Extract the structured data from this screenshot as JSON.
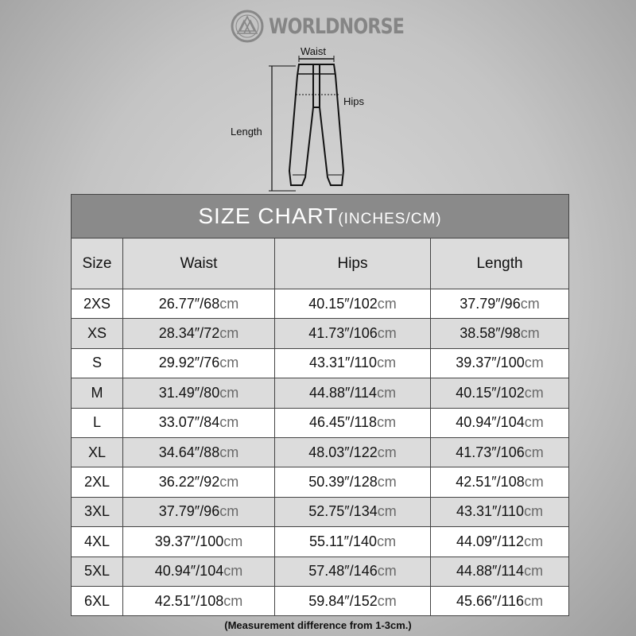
{
  "brand": {
    "name": "WORLDNORSE"
  },
  "illustration": {
    "waist_label": "Waist",
    "hips_label": "Hips",
    "length_label": "Length"
  },
  "table": {
    "title": "SIZE CHART",
    "title_unit": "(INCHES/CM)",
    "headers": [
      "Size",
      "Waist",
      "Hips",
      "Length"
    ],
    "rows": [
      {
        "size": "2XS",
        "cells": [
          {
            "num": "26.77″/68",
            "unit": "cm"
          },
          {
            "num": "40.15″/102",
            "unit": "cm"
          },
          {
            "num": "37.79″/96",
            "unit": "cm"
          }
        ]
      },
      {
        "size": "XS",
        "cells": [
          {
            "num": "28.34″/72",
            "unit": "cm"
          },
          {
            "num": "41.73″/106",
            "unit": "cm"
          },
          {
            "num": "38.58″/98",
            "unit": "cm"
          }
        ]
      },
      {
        "size": "S",
        "cells": [
          {
            "num": "29.92″/76",
            "unit": "cm"
          },
          {
            "num": "43.31″/110",
            "unit": "cm"
          },
          {
            "num": "39.37″/100",
            "unit": "cm"
          }
        ]
      },
      {
        "size": "M",
        "cells": [
          {
            "num": "31.49″/80",
            "unit": "cm"
          },
          {
            "num": "44.88″/114",
            "unit": "cm"
          },
          {
            "num": "40.15″/102",
            "unit": "cm"
          }
        ]
      },
      {
        "size": "L",
        "cells": [
          {
            "num": "33.07″/84",
            "unit": "cm"
          },
          {
            "num": "46.45″/118",
            "unit": "cm"
          },
          {
            "num": "40.94″/104",
            "unit": "cm"
          }
        ]
      },
      {
        "size": "XL",
        "cells": [
          {
            "num": "34.64″/88",
            "unit": "cm"
          },
          {
            "num": "48.03″/122",
            "unit": "cm"
          },
          {
            "num": "41.73″/106",
            "unit": "cm"
          }
        ]
      },
      {
        "size": "2XL",
        "cells": [
          {
            "num": "36.22″/92",
            "unit": "cm"
          },
          {
            "num": "50.39″/128",
            "unit": "cm"
          },
          {
            "num": "42.51″/108",
            "unit": "cm"
          }
        ]
      },
      {
        "size": "3XL",
        "cells": [
          {
            "num": "37.79″/96",
            "unit": "cm"
          },
          {
            "num": "52.75″/134",
            "unit": "cm"
          },
          {
            "num": "43.31″/110",
            "unit": "cm"
          }
        ]
      },
      {
        "size": "4XL",
        "cells": [
          {
            "num": "39.37″/100",
            "unit": "cm"
          },
          {
            "num": "55.11″/140",
            "unit": "cm"
          },
          {
            "num": "44.09″/112",
            "unit": "cm"
          }
        ]
      },
      {
        "size": "5XL",
        "cells": [
          {
            "num": "40.94″/104",
            "unit": "cm"
          },
          {
            "num": "57.48″/146",
            "unit": "cm"
          },
          {
            "num": "44.88″/114",
            "unit": "cm"
          }
        ]
      },
      {
        "size": "6XL",
        "cells": [
          {
            "num": "42.51″/108",
            "unit": "cm"
          },
          {
            "num": "59.84″/152",
            "unit": "cm"
          },
          {
            "num": "45.66″/116",
            "unit": "cm"
          }
        ]
      }
    ]
  },
  "note": "(Measurement difference from 1-3cm.)",
  "colors": {
    "title_bg": "#8a8a8a",
    "header_bg": "#dcdcdc",
    "unit_text": "#6a6a6a",
    "logo": "#858585"
  }
}
